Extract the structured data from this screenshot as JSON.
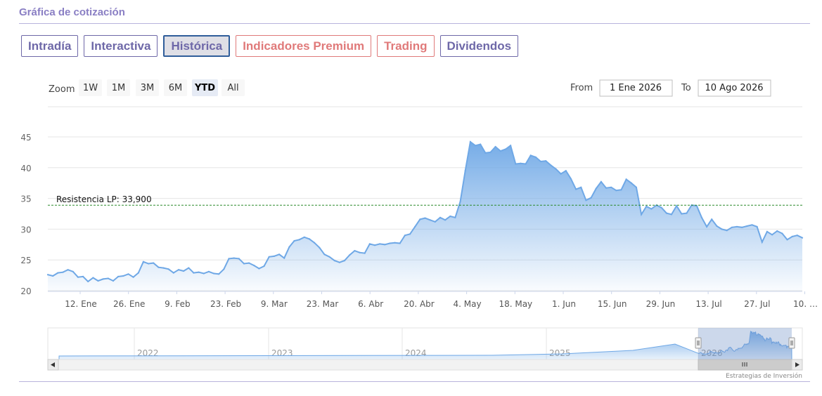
{
  "section_title": "Gráfica de cotización",
  "tabs": [
    {
      "label": "Intradía",
      "style": "normal"
    },
    {
      "label": "Interactiva",
      "style": "normal"
    },
    {
      "label": "Histórica",
      "style": "active"
    },
    {
      "label": "Indicadores Premium",
      "style": "premium"
    },
    {
      "label": "Trading",
      "style": "premium"
    },
    {
      "label": "Dividendos",
      "style": "normal"
    }
  ],
  "range_selector": {
    "zoom_label": "Zoom",
    "buttons": [
      "1W",
      "1M",
      "3M",
      "6M",
      "YTD",
      "All"
    ],
    "selected": "YTD",
    "from_label": "From",
    "from_value": "1 Ene 2026",
    "to_label": "To",
    "to_value": "10 Ago 2026"
  },
  "credits": "Estrategias de Inversión",
  "colors": {
    "accent": "#6e68a8",
    "premium": "#e07a7a",
    "line": "#6fa8e6",
    "resistance": "#2a8a2a"
  },
  "chart_data": {
    "type": "area",
    "series": [
      {
        "values": [
          22.6,
          22.4,
          22.9,
          23.0,
          23.4,
          23.1,
          22.2,
          22.3,
          21.5,
          22.1,
          21.6,
          21.9,
          22.0,
          21.6,
          22.3,
          22.4,
          22.7,
          22.2,
          22.9,
          24.7,
          24.4,
          24.5,
          23.8,
          23.7,
          23.5,
          22.9,
          23.4,
          23.2,
          23.7,
          22.9,
          23.0,
          22.8,
          23.1,
          22.8,
          22.7,
          23.5,
          25.2,
          25.3,
          25.2,
          24.4,
          24.5,
          24.1,
          23.6,
          24.0,
          25.5,
          25.6,
          25.9,
          25.3,
          27.1,
          28.1,
          28.3,
          28.7,
          28.4,
          27.8,
          27.0,
          25.9,
          25.5,
          24.9,
          24.6,
          24.9,
          25.8,
          26.5,
          26.2,
          26.1,
          27.6,
          27.4,
          27.6,
          27.5,
          27.7,
          27.8,
          27.7,
          29.0,
          29.2,
          30.4,
          31.6,
          31.8,
          31.5,
          31.2,
          31.9,
          31.5,
          32.1,
          31.9,
          34.5,
          39.5,
          44.2,
          43.6,
          43.8,
          42.4,
          42.5,
          43.4,
          42.7,
          43.0,
          43.6,
          40.6,
          40.7,
          40.6,
          42.0,
          41.7,
          41.0,
          41.1,
          40.4,
          39.8,
          39.0,
          39.5,
          38.2,
          36.5,
          36.8,
          34.7,
          35.1,
          36.6,
          37.7,
          36.7,
          36.8,
          36.3,
          36.4,
          38.1,
          37.5,
          36.8,
          32.4,
          33.7,
          33.3,
          33.9,
          33.5,
          32.6,
          32.4,
          33.8,
          32.5,
          32.6,
          33.9,
          33.8,
          31.9,
          30.4,
          31.6,
          30.5,
          30.0,
          29.8,
          30.3,
          30.4,
          30.3,
          30.5,
          30.7,
          30.4,
          27.9,
          29.6,
          29.1,
          29.7,
          29.3,
          28.3,
          28.8,
          29.0,
          28.6
        ]
      }
    ],
    "x_tick_labels": [
      "12. Ene",
      "26. Ene",
      "9. Feb",
      "23. Feb",
      "9. Mar",
      "23. Mar",
      "6. Abr",
      "20. Abr",
      "4. May",
      "18. May",
      "1. Jun",
      "15. Jun",
      "29. Jun",
      "13. Jul",
      "27. Jul",
      "10. …"
    ],
    "y_ticks": [
      20,
      25,
      30,
      35,
      40,
      45
    ],
    "ylim": [
      20,
      47
    ],
    "annotations": [
      {
        "label": "Resistencia LP: 33,900",
        "y": 33.9
      }
    ],
    "navigator": {
      "year_labels": [
        "2022",
        "2023",
        "2024",
        "2025",
        "2026"
      ]
    },
    "grid": true,
    "legend": "none"
  }
}
